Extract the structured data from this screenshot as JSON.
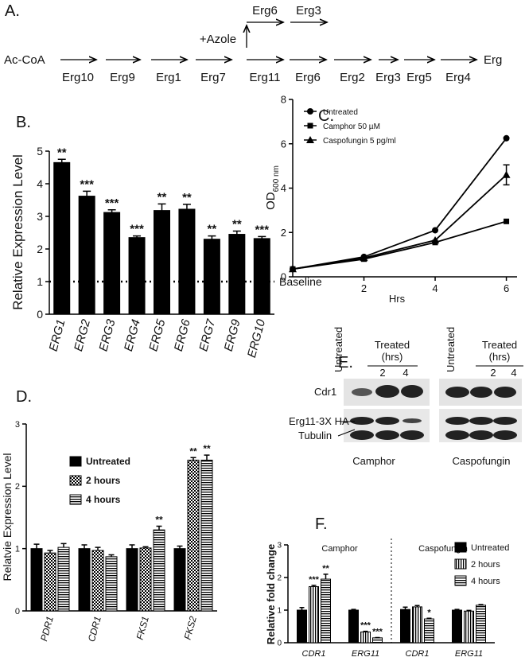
{
  "pathway": {
    "label": "A.",
    "start": "Ac-CoA",
    "steps": [
      "Erg10",
      "Erg9",
      "Erg1",
      "Erg7",
      "Erg11",
      "Erg6",
      "Erg2",
      "Erg3",
      "Erg5",
      "Erg4"
    ],
    "end": "Erg",
    "azole": "+Azole",
    "branch": [
      "Erg6",
      "Erg3"
    ]
  },
  "chart_data": [
    {
      "type": "bar",
      "panel": "B.",
      "ylabel": "Relative Expression Level",
      "categories": [
        "ERG1",
        "ERG2",
        "ERG3",
        "ERG4",
        "ERG5",
        "ERG6",
        "ERG7",
        "ERG9",
        "ERG10"
      ],
      "values": [
        4.65,
        3.62,
        3.12,
        2.35,
        3.18,
        3.22,
        2.3,
        2.45,
        2.32
      ],
      "errors": [
        0.1,
        0.15,
        0.08,
        0.05,
        0.2,
        0.15,
        0.1,
        0.1,
        0.06
      ],
      "stars": [
        "**",
        "***",
        "***",
        "***",
        "**",
        "**",
        "**",
        "**",
        "***"
      ],
      "color": "#000000",
      "pattern": "solid",
      "ylim": [
        0,
        5
      ],
      "yticks": [
        0,
        1,
        2,
        3,
        4,
        5
      ],
      "baseline": {
        "value": 1,
        "label": "Baseline"
      }
    },
    {
      "type": "line",
      "panel": "C.",
      "ylabel": "OD",
      "ylabel_sub": "600 nm",
      "xlabel": "Hrs",
      "x": [
        0,
        2,
        4,
        6
      ],
      "xlim": [
        0,
        6.3
      ],
      "xticks": [
        2,
        4,
        6
      ],
      "ylim": [
        0,
        8
      ],
      "yticks": [
        0,
        2,
        4,
        6,
        8
      ],
      "series": [
        {
          "name": "Untreated",
          "color": "#000000",
          "marker": "circle",
          "values": [
            0.35,
            0.9,
            2.1,
            6.25
          ]
        },
        {
          "name": "Camphor 50 µM",
          "color": "#000000",
          "marker": "square",
          "values": [
            0.35,
            0.8,
            1.55,
            2.5
          ]
        },
        {
          "name": "Caspofungin 5 pg/ml",
          "color": "#000000",
          "marker": "triangle",
          "values": [
            0.35,
            0.85,
            1.65,
            4.6
          ],
          "errors": [
            null,
            null,
            null,
            0.45
          ]
        }
      ]
    },
    {
      "type": "bar",
      "panel": "D.",
      "ylabel": "Relatvie Expression Level",
      "categories": [
        "PDR1",
        "CDR1",
        "FKS1",
        "FKS2"
      ],
      "ylim": [
        0,
        3
      ],
      "yticks": [
        0,
        1,
        2,
        3
      ],
      "series": [
        {
          "name": "Untreated",
          "color": "#000000",
          "pattern": "solid",
          "values": [
            1.0,
            1.0,
            1.0,
            1.0
          ],
          "errors": [
            0.07,
            0.06,
            0.06,
            0.04
          ]
        },
        {
          "name": "2 hours",
          "color": "#000000",
          "pattern": "checker",
          "values": [
            0.93,
            0.97,
            1.01,
            2.42
          ],
          "errors": [
            0.04,
            0.05,
            0.02,
            0.04
          ],
          "stars": [
            null,
            null,
            null,
            "**"
          ]
        },
        {
          "name": "4 hours",
          "color": "#000000",
          "pattern": "hstripe",
          "values": [
            1.02,
            0.87,
            1.3,
            2.42
          ],
          "errors": [
            0.06,
            0.03,
            0.06,
            0.08
          ],
          "stars": [
            null,
            null,
            "**",
            "**"
          ]
        }
      ]
    },
    {
      "type": "bar",
      "panel": "F.",
      "ylabel": "Relative fold change",
      "categories": [
        "CDR1",
        "ERG11",
        "CDR1",
        "ERG11"
      ],
      "groups": [
        "Camphor",
        "Caspofungin"
      ],
      "ylim": [
        0,
        3
      ],
      "yticks": [
        0,
        1,
        2,
        3
      ],
      "series": [
        {
          "name": "Untreated",
          "color": "#000000",
          "pattern": "solid",
          "values": [
            1.0,
            1.0,
            1.02,
            1.0
          ],
          "errors": [
            0.08,
            0.02,
            0.07,
            0.02
          ]
        },
        {
          "name": "2 hours",
          "color": "#000000",
          "pattern": "vstripe",
          "values": [
            1.72,
            0.33,
            1.1,
            0.97
          ],
          "errors": [
            0.04,
            0.02,
            0.04,
            0.02
          ],
          "stars": [
            "***",
            "***",
            null,
            null
          ]
        },
        {
          "name": "4 hours",
          "color": "#000000",
          "pattern": "hstripe",
          "values": [
            1.95,
            0.15,
            0.73,
            1.15
          ],
          "errors": [
            0.15,
            0.01,
            0.02,
            0.02
          ],
          "stars": [
            "**",
            "***",
            "*",
            null
          ]
        }
      ]
    }
  ],
  "blot": {
    "label": "E.",
    "rows": [
      "Cdr1",
      "Erg11-3X HA",
      "Tubulin"
    ],
    "panels": [
      {
        "name": "Camphor",
        "untreated": "Untreated",
        "treated": "Treated",
        "unit": "(hrs)",
        "times": [
          2,
          4
        ]
      },
      {
        "name": "Caspofungin",
        "untreated": "Untreated",
        "treated": "Treated",
        "unit": "(hrs)",
        "times": [
          2,
          4
        ]
      }
    ]
  }
}
